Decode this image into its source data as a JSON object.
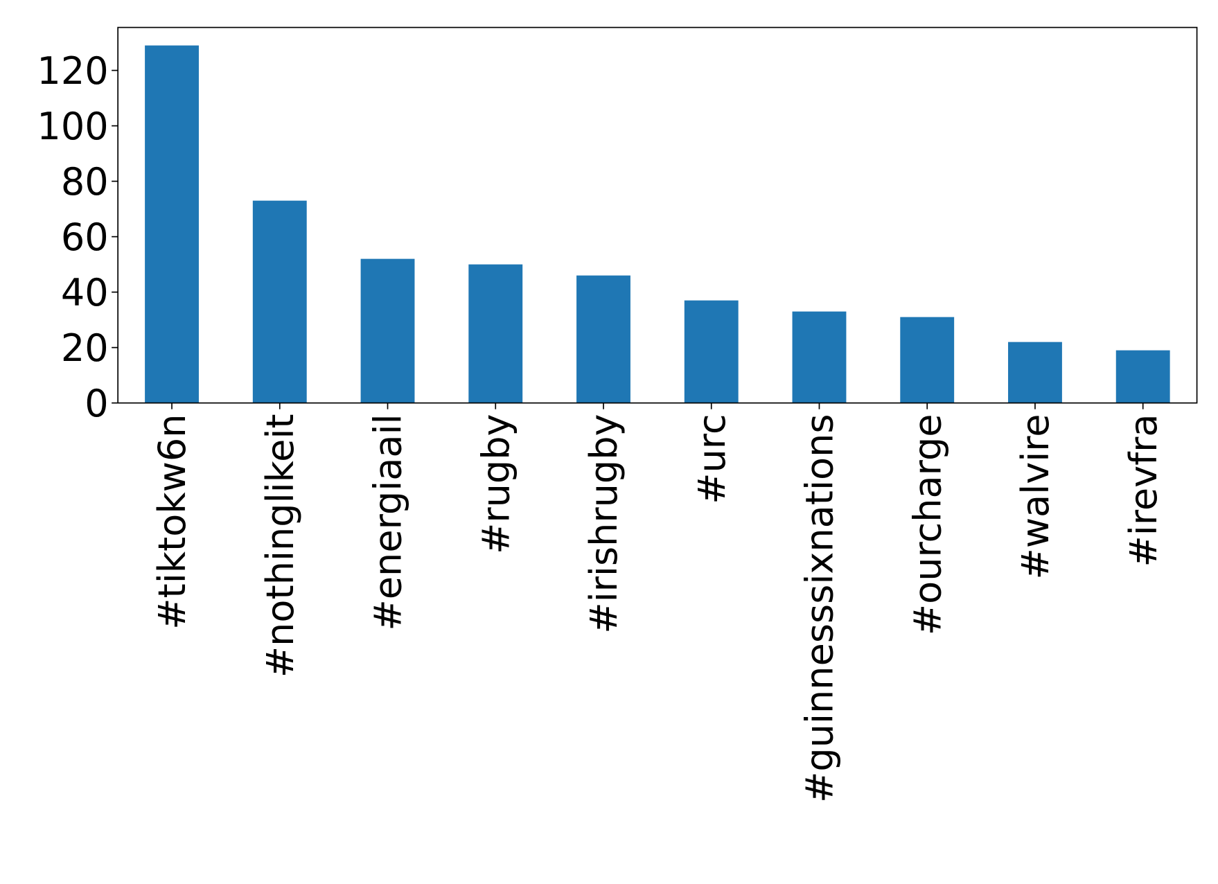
{
  "chart_data": {
    "type": "bar",
    "categories": [
      "#tiktokw6n",
      "#nothinglikeit",
      "#energiaail",
      "#rugby",
      "#irishrugby",
      "#urc",
      "#guinnesssixnations",
      "#ourcharge",
      "#walvire",
      "#irevfra"
    ],
    "values": [
      129,
      73,
      52,
      50,
      46,
      37,
      33,
      31,
      22,
      19
    ],
    "color": "#1f77b4",
    "ylim": [
      0,
      135.5
    ],
    "yticks": [
      0,
      20,
      40,
      60,
      80,
      100,
      120
    ],
    "grid": false
  }
}
